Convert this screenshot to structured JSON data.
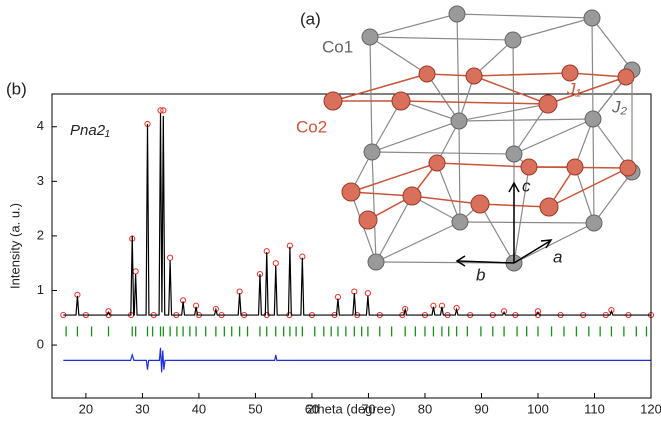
{
  "chart_data": {
    "type": "line",
    "panel_label": "(b)",
    "annotation": "Pna2₁",
    "xlabel": "2theta (degree)",
    "ylabel": "Intensity (a. u.)",
    "xlim": [
      14,
      120
    ],
    "ylim": [
      -0.97,
      4.6
    ],
    "xticks": [
      20,
      30,
      40,
      50,
      60,
      70,
      80,
      90,
      100,
      110,
      120
    ],
    "yticks": [
      0,
      1,
      2,
      3,
      4
    ],
    "series": [
      {
        "color": "#e8332a",
        "marker": "circle",
        "x": [
          16,
          20,
          24,
          28,
          32,
          36,
          40,
          44,
          48,
          52,
          56,
          60,
          64,
          68,
          72,
          76,
          80,
          84,
          88,
          92,
          96,
          100,
          104,
          108,
          112,
          116,
          120,
          18.5,
          24,
          28.2,
          28.8,
          30.9,
          33.2,
          33.7,
          34.9,
          37.2,
          39.5,
          43,
          47.2,
          50.8,
          52,
          53.6,
          56.1,
          58.3,
          64.6,
          67.5,
          69.9,
          76.5,
          81.5,
          83,
          85.6,
          94,
          100,
          113
        ],
        "values": [
          0.55,
          0.55,
          0.55,
          0.55,
          0.55,
          0.55,
          0.55,
          0.55,
          0.55,
          0.55,
          0.55,
          0.55,
          0.55,
          0.55,
          0.55,
          0.55,
          0.55,
          0.55,
          0.55,
          0.55,
          0.55,
          0.55,
          0.55,
          0.55,
          0.55,
          0.55,
          0.55,
          0.92,
          0.62,
          1.95,
          1.35,
          4.05,
          4.3,
          4.3,
          1.6,
          0.82,
          0.72,
          0.66,
          0.98,
          1.3,
          1.72,
          1.5,
          1.82,
          1.62,
          0.88,
          0.98,
          0.95,
          0.66,
          0.72,
          0.72,
          0.68,
          0.62,
          0.62,
          0.64
        ]
      },
      {
        "color": "#000000",
        "marker": "line",
        "x": [
          16,
          18.25,
          18.5,
          18.75,
          23.75,
          24,
          24.25,
          27.95,
          28.2,
          28.45,
          28.55,
          28.8,
          29.05,
          30.65,
          30.9,
          31.15,
          32.95,
          33.2,
          33.45,
          33.7,
          33.95,
          34.65,
          34.9,
          35.15,
          36.95,
          37.2,
          37.45,
          39.25,
          39.5,
          39.75,
          42.75,
          43,
          43.25,
          46.95,
          47.2,
          47.45,
          50.55,
          50.8,
          51.05,
          51.75,
          52,
          52.25,
          53.35,
          53.6,
          53.85,
          55.85,
          56.1,
          56.35,
          58.05,
          58.3,
          58.55,
          64.35,
          64.6,
          64.85,
          67.25,
          67.5,
          67.75,
          69.65,
          69.9,
          70.15,
          76.25,
          76.5,
          76.75,
          81.25,
          81.5,
          81.75,
          82.75,
          83,
          83.25,
          85.35,
          85.6,
          85.85,
          93.75,
          94,
          94.25,
          99.75,
          100,
          100.25,
          112.75,
          113,
          113.25,
          120
        ],
        "values": [
          0.55,
          0.55,
          0.9,
          0.55,
          0.55,
          0.6,
          0.55,
          0.55,
          2.0,
          0.55,
          0.55,
          1.3,
          0.55,
          0.55,
          4.05,
          0.55,
          0.55,
          4.25,
          0.6,
          4.2,
          0.55,
          0.55,
          1.55,
          0.55,
          0.55,
          0.8,
          0.55,
          0.55,
          0.7,
          0.55,
          0.55,
          0.65,
          0.55,
          0.55,
          0.95,
          0.55,
          0.55,
          1.3,
          0.55,
          0.55,
          1.7,
          0.55,
          0.55,
          1.45,
          0.55,
          0.55,
          1.8,
          0.55,
          0.55,
          1.6,
          0.55,
          0.55,
          0.85,
          0.55,
          0.55,
          0.95,
          0.55,
          0.55,
          0.9,
          0.55,
          0.55,
          0.65,
          0.55,
          0.55,
          0.7,
          0.55,
          0.55,
          0.7,
          0.55,
          0.55,
          0.65,
          0.55,
          0.55,
          0.6,
          0.55,
          0.55,
          0.6,
          0.55,
          0.55,
          0.62,
          0.55,
          0.55
        ]
      },
      {
        "color": "#1a8f1a",
        "marker": "tick",
        "x": [
          16.5,
          18.5,
          21,
          24,
          28.2,
          28.8,
          30.9,
          31.8,
          33.2,
          33.7,
          34.9,
          36.1,
          37.2,
          38.4,
          39.5,
          41.2,
          43,
          44.5,
          45.8,
          47.2,
          48.6,
          50.8,
          52,
          53.6,
          55,
          56.1,
          57.2,
          58.3,
          60.5,
          62.1,
          63.4,
          64.6,
          66,
          67.5,
          68.8,
          69.9,
          72,
          74.1,
          76.5,
          78.3,
          80,
          81.5,
          83,
          84.2,
          85.6,
          87.5,
          89.9,
          92,
          94,
          96.3,
          98,
          100,
          102.4,
          104.6,
          106.8,
          109,
          111,
          113,
          115.2,
          117.4,
          119.2
        ],
        "values": [
          0.25,
          0.25,
          0.25,
          0.25,
          0.25,
          0.25,
          0.25,
          0.25,
          0.25,
          0.25,
          0.25,
          0.25,
          0.25,
          0.25,
          0.25,
          0.25,
          0.25,
          0.25,
          0.25,
          0.25,
          0.25,
          0.25,
          0.25,
          0.25,
          0.25,
          0.25,
          0.25,
          0.25,
          0.25,
          0.25,
          0.25,
          0.25,
          0.25,
          0.25,
          0.25,
          0.25,
          0.25,
          0.25,
          0.25,
          0.25,
          0.25,
          0.25,
          0.25,
          0.25,
          0.25,
          0.25,
          0.25,
          0.25,
          0.25,
          0.25,
          0.25,
          0.25,
          0.25,
          0.25,
          0.25,
          0.25,
          0.25,
          0.25,
          0.25,
          0.25,
          0.25
        ]
      },
      {
        "color": "#1f2fd6",
        "marker": "line",
        "x": [
          16,
          27.9,
          28.2,
          28.5,
          30.7,
          30.9,
          31.1,
          33.0,
          33.2,
          33.4,
          33.6,
          33.8,
          34.0,
          53.4,
          53.6,
          53.8,
          120
        ],
        "values": [
          -0.28,
          -0.28,
          -0.18,
          -0.28,
          -0.28,
          -0.45,
          -0.28,
          -0.28,
          -0.05,
          -0.5,
          -0.1,
          -0.45,
          -0.28,
          -0.28,
          -0.18,
          -0.28,
          -0.28
        ]
      }
    ]
  },
  "inset": {
    "panel_label": "(a)",
    "co1": "Co1",
    "co2": "Co2",
    "j1": "J₁",
    "j2": "J₂",
    "axis_c": "c",
    "axis_b": "b",
    "axis_a": "a"
  }
}
